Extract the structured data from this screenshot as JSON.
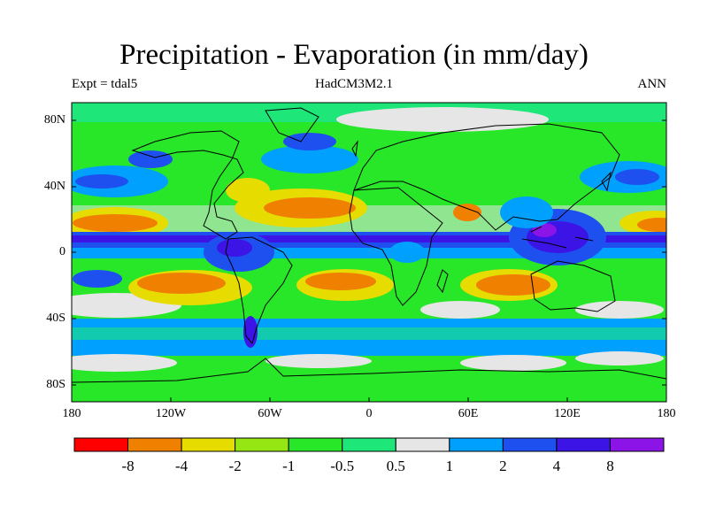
{
  "title": "Precipitation - Evaporation (in mm/day)",
  "subtitle": {
    "experiment": "Expt = tdal5",
    "model": "HadCM3M2.1",
    "period": "ANN"
  },
  "axes": {
    "lat_ticks": [
      "80N",
      "40N",
      "0",
      "40S",
      "80S"
    ],
    "lon_ticks": [
      "180",
      "120W",
      "60W",
      "0",
      "60E",
      "120E",
      "180"
    ]
  },
  "colorbar": {
    "labels": [
      "-8",
      "-4",
      "-2",
      "-1",
      "-0.5",
      "0.5",
      "1",
      "2",
      "4",
      "8"
    ],
    "colors": [
      "#ff0000",
      "#f08000",
      "#e6dc00",
      "#96e614",
      "#28e628",
      "#1ee678",
      "#e6e6e6",
      "#00a0ff",
      "#1e50f0",
      "#3c14e6",
      "#8c14e6"
    ]
  }
}
